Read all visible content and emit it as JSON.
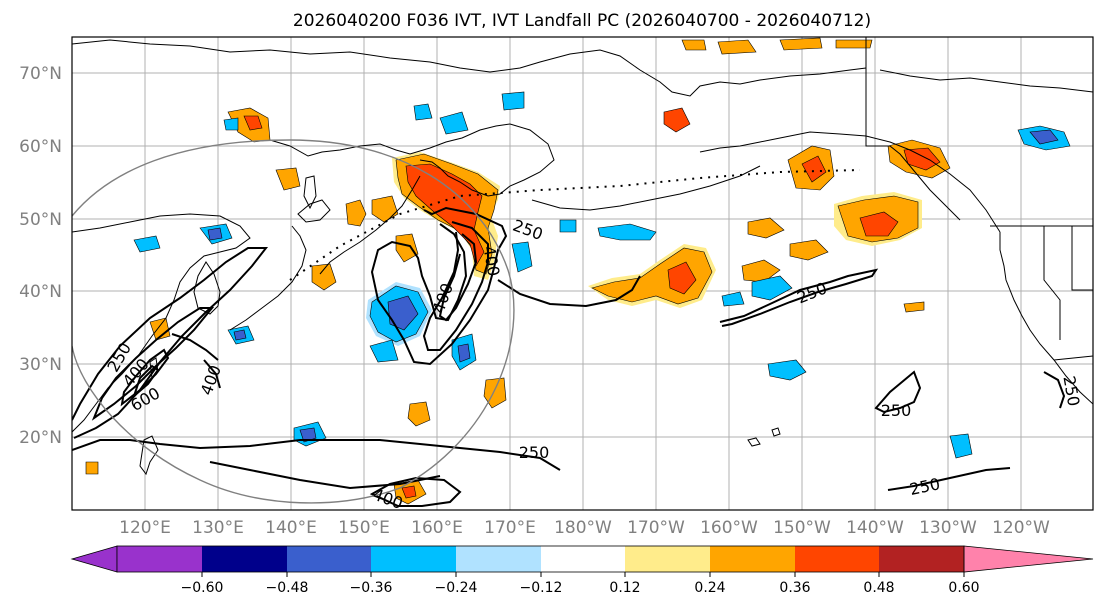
{
  "title": "2026040200 F036 IVT, IVT Landfall PC (2026040700 - 2026040712)",
  "lat_labels": [
    "70°N",
    "60°N",
    "50°N",
    "40°N",
    "30°N",
    "20°N"
  ],
  "lon_labels": [
    "120°E",
    "130°E",
    "140°E",
    "150°E",
    "160°E",
    "170°E",
    "180°W",
    "170°W",
    "160°W",
    "150°W",
    "140°W",
    "130°W",
    "120°W"
  ],
  "colorbar": {
    "ticks": [
      "−0.60",
      "−0.48",
      "−0.36",
      "−0.24",
      "−0.12",
      "0.12",
      "0.24",
      "0.36",
      "0.48",
      "0.60"
    ],
    "colors": [
      "#9932cc",
      "#00008b",
      "#3a5fcd",
      "#00bfff",
      "#b0e2ff",
      "#ffffff",
      "#ffec8b",
      "#ffa500",
      "#ff4500",
      "#b22222",
      "#ff82ab"
    ]
  },
  "contour_labels": {
    "l250_kam": "250",
    "l400_kam_a": "400",
    "l400_kam_b": "400",
    "l250_mid": "250",
    "l250_ep": "250",
    "l250_ec": "250",
    "l250_se": "250",
    "l250_c": "250",
    "l400_a": "400",
    "l400_b": "400",
    "l600": "600",
    "l250_w": "250",
    "l400_s": "400"
  },
  "palette": {
    "purple": "#9932cc",
    "navy": "#00008b",
    "royal": "#3a5fcd",
    "sky": "#00bfff",
    "light_sky": "#b0e2ff",
    "light_yellow": "#ffec8b",
    "orange": "#ffa500",
    "red_orange": "#ff4500",
    "firebrick": "#b22222",
    "pink": "#ff82ab"
  }
}
